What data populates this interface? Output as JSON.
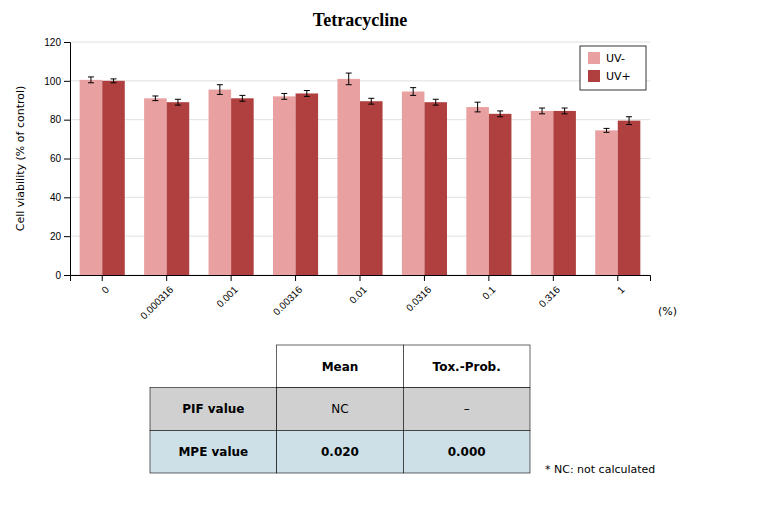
{
  "chart_data": {
    "type": "bar",
    "title": "Tetracycline",
    "xlabel": "(%)",
    "ylabel": "Cell viability (% of control)",
    "categories": [
      "0",
      "0.000316",
      "0.001",
      "0.00316",
      "0.01",
      "0.0316",
      "0.1",
      "0.316",
      "1"
    ],
    "series": [
      {
        "name": "UV-",
        "color": "#e8a0a0",
        "values": [
          100.5,
          91.0,
          95.5,
          92.0,
          101.0,
          94.5,
          86.5,
          84.5,
          74.5
        ],
        "errors": [
          1.5,
          1.2,
          2.5,
          1.5,
          3.0,
          2.0,
          2.5,
          1.5,
          1.0
        ]
      },
      {
        "name": "UV+",
        "color": "#b04040",
        "values": [
          100.0,
          89.0,
          91.0,
          93.5,
          89.5,
          89.0,
          83.0,
          84.5,
          79.5
        ],
        "errors": [
          1.0,
          1.5,
          1.5,
          1.5,
          1.5,
          1.5,
          1.5,
          1.5,
          2.0
        ]
      }
    ],
    "ylim": [
      0,
      120
    ],
    "yticks": [
      0,
      20,
      40,
      60,
      80,
      100,
      120
    ],
    "grid": true,
    "legend": "upper right",
    "table": {
      "columns": [
        "Mean",
        "Tox.-Prob."
      ],
      "rows": [
        {
          "label": "PIF value",
          "cells": [
            "NC",
            "–"
          ]
        },
        {
          "label": "MPE value",
          "cells": [
            "0.020",
            "0.000"
          ]
        }
      ]
    },
    "footnote": "* NC: not calculated"
  }
}
